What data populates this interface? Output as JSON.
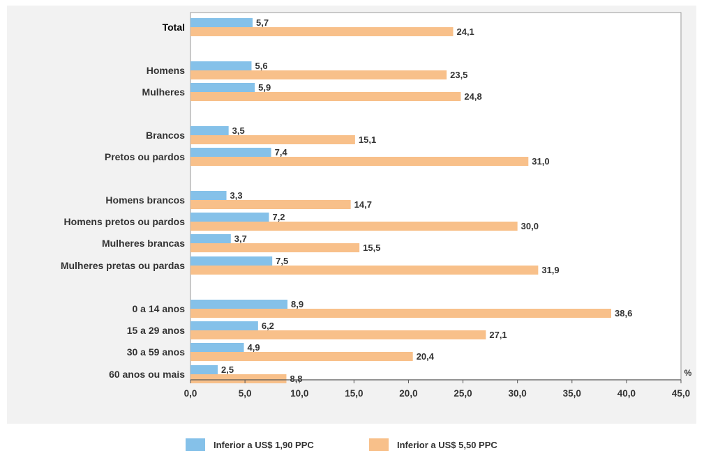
{
  "chart_data": {
    "type": "bar",
    "orientation": "horizontal",
    "categories": [
      "Total",
      "Homens",
      "Mulheres",
      "Brancos",
      "Pretos ou pardos",
      "Homens brancos",
      "Homens pretos ou pardos",
      "Mulheres brancas",
      "Mulheres pretas ou pardas",
      "0 a 14 anos",
      "15 a 29 anos",
      "30 a 59 anos",
      "60 anos ou mais"
    ],
    "series": [
      {
        "name": "Inferior a US$ 1,90 PPC",
        "color": "#85c1e9",
        "values": [
          5.7,
          5.6,
          5.9,
          3.5,
          7.4,
          3.3,
          7.2,
          3.7,
          7.5,
          8.9,
          6.2,
          4.9,
          2.5
        ],
        "labels": [
          "5,7",
          "5,6",
          "5,9",
          "3,5",
          "7,4",
          "3,3",
          "7,2",
          "3,7",
          "7,5",
          "8,9",
          "6,2",
          "4,9",
          "2,5"
        ]
      },
      {
        "name": "Inferior a US$ 5,50 PPC",
        "color": "#f8c08a",
        "values": [
          24.1,
          23.5,
          24.8,
          15.1,
          31.0,
          14.7,
          30.0,
          15.5,
          31.9,
          38.6,
          27.1,
          20.4,
          8.8
        ],
        "labels": [
          "24,1",
          "23,5",
          "24,8",
          "15,1",
          "31,0",
          "14,7",
          "30,0",
          "15,5",
          "31,9",
          "38,6",
          "27,1",
          "20,4",
          "8,8"
        ]
      }
    ],
    "xlim": [
      0,
      45
    ],
    "xticks": [
      0,
      5,
      10,
      15,
      20,
      25,
      30,
      35,
      40,
      45
    ],
    "xtick_labels": [
      "0,0",
      "5,0",
      "10,0",
      "15,0",
      "20,0",
      "25,0",
      "30,0",
      "35,0",
      "40,0",
      "45,0"
    ],
    "xunit": "%",
    "legend_position": "bottom",
    "grid": false
  }
}
